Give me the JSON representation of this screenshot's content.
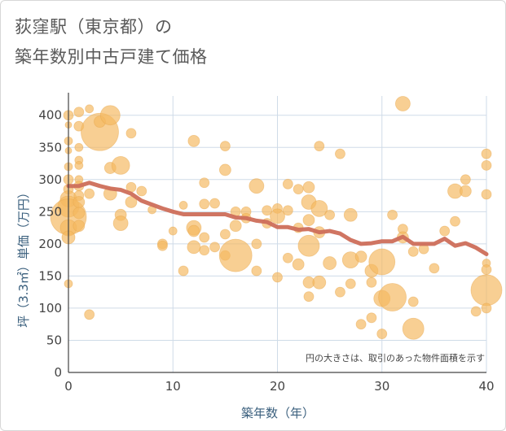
{
  "title_line1": "荻窪駅（東京都）の",
  "title_line2": "築年数別中古戸建て価格",
  "note": "円の大きさは、取引のあった物件面積を示す",
  "colors": {
    "bubble": "#f4b860",
    "line": "#cd6e5a",
    "grid": "#cfdbe8",
    "axis": "#444444"
  },
  "chart_data": {
    "type": "scatter",
    "xlabel": "築年数（年）",
    "ylabel": "坪（3.3㎡）単価（万円）",
    "xlim": [
      0,
      40
    ],
    "ylim": [
      0,
      430
    ],
    "xticks": [
      0,
      10,
      20,
      30,
      40
    ],
    "yticks": [
      0,
      50,
      100,
      150,
      200,
      250,
      300,
      350,
      400
    ],
    "grid": true,
    "bubbles": [
      {
        "x": 0,
        "y": 400,
        "s": 6
      },
      {
        "x": 0,
        "y": 385,
        "s": 4
      },
      {
        "x": 0,
        "y": 360,
        "s": 5
      },
      {
        "x": 0,
        "y": 345,
        "s": 4
      },
      {
        "x": 0,
        "y": 320,
        "s": 5
      },
      {
        "x": 0,
        "y": 300,
        "s": 6
      },
      {
        "x": 0,
        "y": 285,
        "s": 6
      },
      {
        "x": 0,
        "y": 270,
        "s": 10
      },
      {
        "x": 0,
        "y": 258,
        "s": 13
      },
      {
        "x": 0,
        "y": 242,
        "s": 22
      },
      {
        "x": 0,
        "y": 225,
        "s": 10
      },
      {
        "x": 0,
        "y": 210,
        "s": 8
      },
      {
        "x": 0,
        "y": 138,
        "s": 5
      },
      {
        "x": 1,
        "y": 405,
        "s": 6
      },
      {
        "x": 1,
        "y": 383,
        "s": 6
      },
      {
        "x": 1,
        "y": 350,
        "s": 5
      },
      {
        "x": 1,
        "y": 330,
        "s": 5
      },
      {
        "x": 1,
        "y": 322,
        "s": 5
      },
      {
        "x": 1,
        "y": 300,
        "s": 5
      },
      {
        "x": 1,
        "y": 290,
        "s": 6
      },
      {
        "x": 1,
        "y": 275,
        "s": 6
      },
      {
        "x": 1,
        "y": 265,
        "s": 7
      },
      {
        "x": 1,
        "y": 248,
        "s": 7
      },
      {
        "x": 1,
        "y": 228,
        "s": 7
      },
      {
        "x": 2,
        "y": 410,
        "s": 5
      },
      {
        "x": 2,
        "y": 90,
        "s": 6
      },
      {
        "x": 2,
        "y": 278,
        "s": 6
      },
      {
        "x": 3,
        "y": 374,
        "s": 23
      },
      {
        "x": 3,
        "y": 390,
        "s": 7
      },
      {
        "x": 4,
        "y": 400,
        "s": 12
      },
      {
        "x": 4,
        "y": 318,
        "s": 7
      },
      {
        "x": 4,
        "y": 278,
        "s": 8
      },
      {
        "x": 5,
        "y": 322,
        "s": 11
      },
      {
        "x": 5,
        "y": 245,
        "s": 7
      },
      {
        "x": 5,
        "y": 232,
        "s": 9
      },
      {
        "x": 6,
        "y": 372,
        "s": 6
      },
      {
        "x": 6,
        "y": 288,
        "s": 6
      },
      {
        "x": 6,
        "y": 265,
        "s": 7
      },
      {
        "x": 7,
        "y": 282,
        "s": 6
      },
      {
        "x": 8,
        "y": 253,
        "s": 5
      },
      {
        "x": 9,
        "y": 200,
        "s": 6
      },
      {
        "x": 9,
        "y": 197,
        "s": 6
      },
      {
        "x": 10,
        "y": 220,
        "s": 5
      },
      {
        "x": 11,
        "y": 158,
        "s": 6
      },
      {
        "x": 11,
        "y": 260,
        "s": 5
      },
      {
        "x": 12,
        "y": 360,
        "s": 7
      },
      {
        "x": 12,
        "y": 225,
        "s": 9
      },
      {
        "x": 12,
        "y": 220,
        "s": 7
      },
      {
        "x": 12,
        "y": 195,
        "s": 8
      },
      {
        "x": 13,
        "y": 295,
        "s": 6
      },
      {
        "x": 13,
        "y": 262,
        "s": 6
      },
      {
        "x": 13,
        "y": 210,
        "s": 6
      },
      {
        "x": 13,
        "y": 190,
        "s": 6
      },
      {
        "x": 14,
        "y": 263,
        "s": 6
      },
      {
        "x": 14,
        "y": 195,
        "s": 6
      },
      {
        "x": 15,
        "y": 352,
        "s": 6
      },
      {
        "x": 15,
        "y": 315,
        "s": 7
      },
      {
        "x": 15,
        "y": 215,
        "s": 6
      },
      {
        "x": 15,
        "y": 182,
        "s": 6
      },
      {
        "x": 16,
        "y": 250,
        "s": 6
      },
      {
        "x": 16,
        "y": 228,
        "s": 7
      },
      {
        "x": 16,
        "y": 182,
        "s": 20
      },
      {
        "x": 17,
        "y": 250,
        "s": 6
      },
      {
        "x": 17,
        "y": 240,
        "s": 6
      },
      {
        "x": 18,
        "y": 290,
        "s": 9
      },
      {
        "x": 18,
        "y": 200,
        "s": 6
      },
      {
        "x": 18,
        "y": 158,
        "s": 6
      },
      {
        "x": 19,
        "y": 252,
        "s": 6
      },
      {
        "x": 19,
        "y": 232,
        "s": 6
      },
      {
        "x": 20,
        "y": 255,
        "s": 6
      },
      {
        "x": 20,
        "y": 243,
        "s": 9
      },
      {
        "x": 20,
        "y": 148,
        "s": 6
      },
      {
        "x": 21,
        "y": 293,
        "s": 6
      },
      {
        "x": 21,
        "y": 252,
        "s": 6
      },
      {
        "x": 21,
        "y": 178,
        "s": 6
      },
      {
        "x": 22,
        "y": 285,
        "s": 6
      },
      {
        "x": 22,
        "y": 225,
        "s": 6
      },
      {
        "x": 22,
        "y": 168,
        "s": 7
      },
      {
        "x": 23,
        "y": 288,
        "s": 7
      },
      {
        "x": 23,
        "y": 265,
        "s": 9
      },
      {
        "x": 23,
        "y": 237,
        "s": 7
      },
      {
        "x": 23,
        "y": 197,
        "s": 13
      },
      {
        "x": 23,
        "y": 140,
        "s": 7
      },
      {
        "x": 23,
        "y": 118,
        "s": 6
      },
      {
        "x": 24,
        "y": 352,
        "s": 6
      },
      {
        "x": 24,
        "y": 255,
        "s": 10
      },
      {
        "x": 24,
        "y": 218,
        "s": 7
      },
      {
        "x": 24,
        "y": 140,
        "s": 8
      },
      {
        "x": 25,
        "y": 245,
        "s": 6
      },
      {
        "x": 25,
        "y": 170,
        "s": 8
      },
      {
        "x": 26,
        "y": 340,
        "s": 6
      },
      {
        "x": 26,
        "y": 125,
        "s": 6
      },
      {
        "x": 27,
        "y": 245,
        "s": 8
      },
      {
        "x": 27,
        "y": 175,
        "s": 10
      },
      {
        "x": 27,
        "y": 138,
        "s": 6
      },
      {
        "x": 28,
        "y": 180,
        "s": 7
      },
      {
        "x": 28,
        "y": 75,
        "s": 6
      },
      {
        "x": 29,
        "y": 158,
        "s": 8
      },
      {
        "x": 29,
        "y": 140,
        "s": 6
      },
      {
        "x": 29,
        "y": 85,
        "s": 6
      },
      {
        "x": 30,
        "y": 172,
        "s": 16
      },
      {
        "x": 30,
        "y": 115,
        "s": 10
      },
      {
        "x": 30,
        "y": 60,
        "s": 6
      },
      {
        "x": 31,
        "y": 245,
        "s": 6
      },
      {
        "x": 31,
        "y": 117,
        "s": 17
      },
      {
        "x": 32,
        "y": 418,
        "s": 9
      },
      {
        "x": 32,
        "y": 223,
        "s": 6
      },
      {
        "x": 32,
        "y": 210,
        "s": 7
      },
      {
        "x": 33,
        "y": 188,
        "s": 6
      },
      {
        "x": 33,
        "y": 110,
        "s": 6
      },
      {
        "x": 33,
        "y": 68,
        "s": 13
      },
      {
        "x": 34,
        "y": 192,
        "s": 6
      },
      {
        "x": 35,
        "y": 162,
        "s": 6
      },
      {
        "x": 36,
        "y": 220,
        "s": 6
      },
      {
        "x": 37,
        "y": 282,
        "s": 9
      },
      {
        "x": 37,
        "y": 235,
        "s": 6
      },
      {
        "x": 38,
        "y": 300,
        "s": 6
      },
      {
        "x": 38,
        "y": 282,
        "s": 7
      },
      {
        "x": 39,
        "y": 95,
        "s": 6
      },
      {
        "x": 40,
        "y": 340,
        "s": 6
      },
      {
        "x": 40,
        "y": 322,
        "s": 6
      },
      {
        "x": 40,
        "y": 277,
        "s": 6
      },
      {
        "x": 40,
        "y": 170,
        "s": 5
      },
      {
        "x": 40,
        "y": 160,
        "s": 6
      },
      {
        "x": 40,
        "y": 128,
        "s": 19
      },
      {
        "x": 40,
        "y": 100,
        "s": 6
      }
    ],
    "trend": {
      "x": [
        0,
        1,
        2,
        3,
        4,
        5,
        6,
        7,
        8,
        9,
        10,
        11,
        12,
        13,
        14,
        15,
        16,
        17,
        18,
        19,
        20,
        21,
        22,
        23,
        24,
        25,
        26,
        27,
        28,
        29,
        30,
        31,
        32,
        33,
        34,
        35,
        36,
        37,
        38,
        39,
        40
      ],
      "y": [
        290,
        290,
        295,
        290,
        286,
        284,
        278,
        267,
        261,
        255,
        250,
        246,
        246,
        246,
        246,
        246,
        241,
        240,
        236,
        234,
        226,
        226,
        222,
        223,
        218,
        220,
        216,
        206,
        200,
        201,
        204,
        204,
        211,
        200,
        200,
        200,
        208,
        197,
        201,
        194,
        184
      ]
    }
  }
}
